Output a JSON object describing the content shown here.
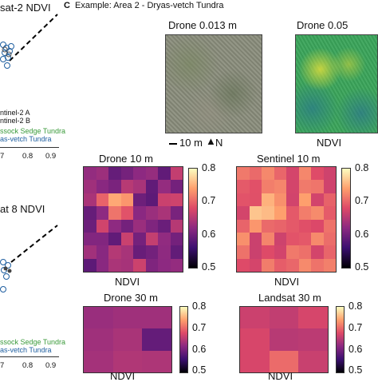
{
  "colors": {
    "bg": "#ffffff",
    "sedge_green": "#3a9a3a",
    "dryas_blue": "#1f5fa0",
    "palette": "magma"
  },
  "left_panel": {
    "top_title": "sat-2 NDVI",
    "legend_line1": "ntinel-2 A",
    "legend_line2": "ntinel-2 B",
    "legend_green": "ssock Sedge Tundra",
    "legend_blue": "as-vetch Tundra",
    "ticks_top": [
      "0.8",
      "0.9"
    ],
    "tick_left_top": "7",
    "bottom_title": "at 8 NDVI",
    "legend_green_2": "ssock Sedge Tundra",
    "legend_blue_2": "as-vetch Tundra",
    "ticks_bottom": [
      "0.8",
      "0.9"
    ],
    "tick_left_bottom": "7"
  },
  "panel_c": {
    "letter": "C",
    "title": "Example: Area 2 - Dryas-vetch Tundra",
    "drone_rgb_title": "Drone 0.013 m",
    "drone_ndvi_title": "Drone 0.05",
    "scale_bar_label": "10 m",
    "north_label": "N",
    "ndvi_label_top": "NDVI",
    "maps": [
      {
        "title": "Drone 10 m",
        "xlabel": "NDVI"
      },
      {
        "title": "Sentinel 10 m",
        "xlabel": "NDVI"
      },
      {
        "title": "Drone 30 m",
        "xlabel": "NDVI"
      },
      {
        "title": "Landsat 30 m",
        "xlabel": "NDVI"
      }
    ],
    "colorbar_ticks": [
      "0.8",
      "0.7",
      "0.6",
      "0.5"
    ],
    "colorbar_ticks_short": [
      "0.8",
      "0.7",
      "0.6",
      "0.5"
    ]
  }
}
